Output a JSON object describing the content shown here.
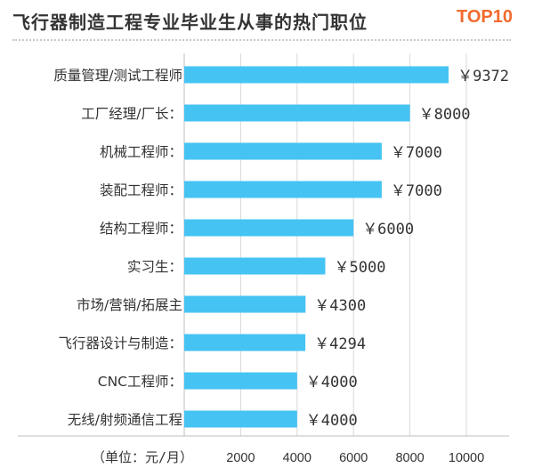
{
  "header": {
    "title": "飞行器制造工程专业毕业生从事的热门职位",
    "badge": "TOP10"
  },
  "colors": {
    "bar": "#45c3f3",
    "badge": "#f26a2e",
    "grid": "#d9d9d9",
    "text": "#333333"
  },
  "chart_data": {
    "type": "bar",
    "orientation": "horizontal",
    "title": "飞行器制造工程专业毕业生从事的热门职位",
    "categories": [
      "质量管理/测试工程师",
      "工厂经理/厂长：",
      "机械工程师：",
      "装配工程师：",
      "结构工程师：",
      "实习生：",
      "市场/营销/拓展主",
      "飞行器设计与制造：",
      "CNC工程师：",
      "无线/射频通信工程"
    ],
    "values": [
      9372,
      8000,
      7000,
      7000,
      6000,
      5000,
      4300,
      4294,
      4000,
      4000
    ],
    "value_labels": [
      "￥9372",
      "￥8000",
      "￥7000",
      "￥7000",
      "￥6000",
      "￥5000",
      "￥4300",
      "￥4294",
      "￥4000",
      "￥4000"
    ],
    "xlabel": "（单位：元/月）",
    "ylabel": "",
    "xticks": [
      "2000",
      "4000",
      "6000",
      "8000",
      "10000"
    ],
    "xtick_values": [
      2000,
      4000,
      6000,
      8000,
      10000
    ],
    "xlim": [
      0,
      11000
    ],
    "grid": true,
    "legend": "none"
  }
}
